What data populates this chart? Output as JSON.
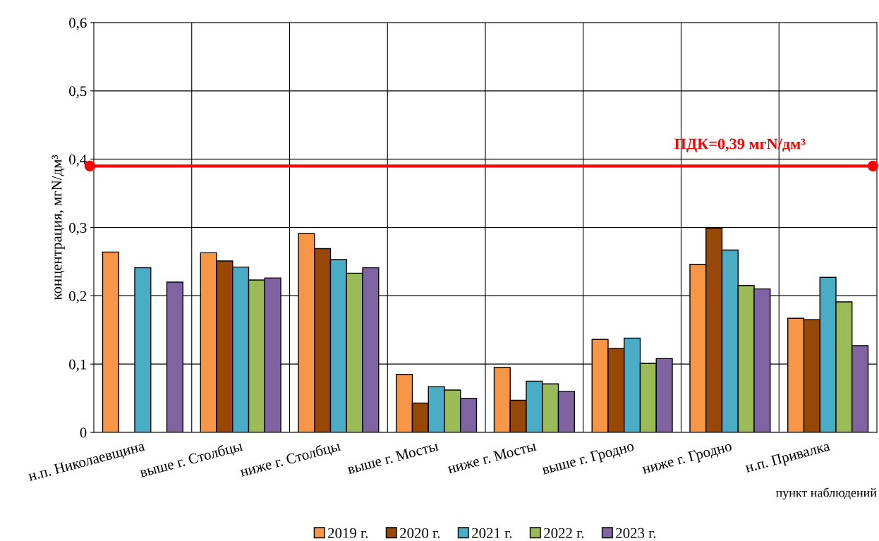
{
  "chart_data": {
    "type": "bar",
    "categories": [
      "н.п. Николаевщина",
      "выше г. Столбцы",
      "ниже г. Столбцы",
      "выше г. Мосты",
      "ниже г. Мосты",
      "выше г. Гродно",
      "ниже г. Гродно",
      "н.п. Привалка"
    ],
    "series": [
      {
        "name": "2019 г.",
        "color": "#f79646",
        "values": [
          0.264,
          0.263,
          0.291,
          0.085,
          0.095,
          0.136,
          0.246,
          0.167
        ]
      },
      {
        "name": "2020 г.",
        "color": "#974706",
        "values": [
          null,
          0.251,
          0.269,
          0.043,
          0.047,
          0.123,
          0.299,
          0.165
        ]
      },
      {
        "name": "2021 г.",
        "color": "#4bacc6",
        "values": [
          0.241,
          0.242,
          0.253,
          0.067,
          0.075,
          0.138,
          0.267,
          0.227
        ]
      },
      {
        "name": "2022 г.",
        "color": "#9bbb59",
        "values": [
          null,
          0.223,
          0.233,
          0.062,
          0.071,
          0.101,
          0.215,
          0.191
        ]
      },
      {
        "name": "2023 г.",
        "color": "#8064a2",
        "values": [
          0.22,
          0.226,
          0.241,
          0.05,
          0.06,
          0.108,
          0.21,
          0.127
        ]
      }
    ],
    "ylabel": "концентрация, мгN/дм³",
    "xlabel": "пункт наблюдений",
    "ylim": [
      0,
      0.6
    ],
    "yticks": [
      0,
      {
        "value": 0.1,
        "label": "0,1"
      },
      {
        "value": 0.2,
        "label": "0,2"
      },
      {
        "value": 0.3,
        "label": "0,3"
      },
      {
        "value": 0.4,
        "label": "0,4"
      },
      {
        "value": 0.5,
        "label": "0,5"
      },
      {
        "value": 0.6,
        "label": "0,6"
      }
    ],
    "ref_lines": [
      {
        "axis": "y",
        "value": 0.39,
        "label": "ПДК=0,39 мгN/дм³",
        "color": "#ff0000",
        "line_style": "solid"
      }
    ],
    "grid": true,
    "legend": "bottom"
  }
}
